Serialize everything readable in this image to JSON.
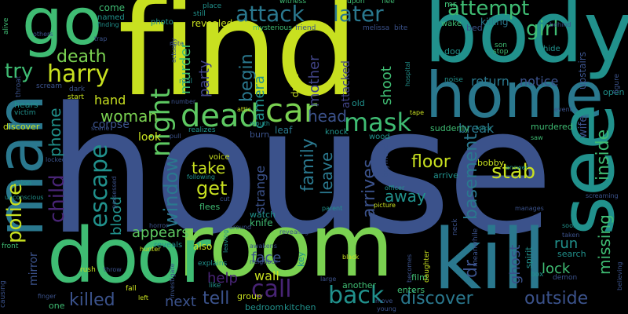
{
  "background": "#000000",
  "palette": {
    "yellow": "#c8e020",
    "lime": "#7ad151",
    "green": "#3fbc73",
    "teal": "#21918c",
    "cyan": "#2a788e",
    "blue": "#3b528b",
    "indigo": "#414487",
    "purple": "#482475",
    "dark": "#440154",
    "mint": "#5ec962"
  },
  "words": {
    "house": "house",
    "find": "find",
    "body": "body",
    "room": "room",
    "home": "home",
    "kill": "kill",
    "man": "man",
    "go": "go",
    "see": "see",
    "door": "door",
    "dead": "dead",
    "car": "car",
    "mask": "mask",
    "harry": "harry",
    "death": "death",
    "try": "try",
    "night": "night",
    "woman": "woman",
    "attack": "attack",
    "later": "later",
    "attempt": "attempt",
    "girl": "girl",
    "murder": "murder",
    "begin": "begin",
    "party": "party",
    "camera": "camera",
    "shoot": "shoot",
    "mother": "mother",
    "attacked": "attacked",
    "head": "head",
    "hand": "hand",
    "phone": "phone",
    "child": "child",
    "police": "police",
    "escape": "escape",
    "window": "window",
    "get": "get",
    "take": "take",
    "strange": "strange",
    "family": "family",
    "leave": "leave",
    "arrives": "arrives",
    "away": "away",
    "basement": "basement",
    "floor": "floor",
    "stab": "stab",
    "missing": "missing",
    "inside": "inside",
    "appears": "appears",
    "blood": "blood",
    "call": "call",
    "back": "back",
    "killed": "killed",
    "next": "next",
    "tell": "tell",
    "discover": "discover",
    "outside": "outside",
    "help": "help",
    "wall": "wall",
    "face": "face",
    "run": "run",
    "lock": "lock",
    "ghost": "ghost",
    "return": "return",
    "notice": "notice",
    "break": "break",
    "corpse": "corpse",
    "look": "look",
    "mirror": "mirror",
    "dr": "dr",
    "kitchen": "kitchen",
    "bedroom": "bedroom",
    "come": "come",
    "named": "named",
    "revealed": "revealed",
    "killing": "killing",
    "bed": "bed",
    "dog": "dog",
    "upstairs": "upstairs",
    "wife": "wife",
    "open": "open",
    "suddenly": "suddenly",
    "murdered": "murdered",
    "bobby": "bobby",
    "search": "search",
    "spirit": "spirit",
    "film": "film",
    "watch": "watch",
    "knife": "knife",
    "drive": "drive",
    "burn": "burn",
    "voice": "voice",
    "flees": "flees",
    "also": "also",
    "reveals": "reveals",
    "enters": "enters",
    "another": "another",
    "one": "one",
    "group": "group",
    "key": "key",
    "arrive": "arrive",
    "wood": "wood",
    "knock": "knock",
    "leaf": "leaf",
    "old": "old",
    "photo": "photo",
    "still": "still",
    "place": "place",
    "mysterious": "mysterious",
    "witness": "witness",
    "upon": "upon",
    "flee": "flee",
    "friend": "friend",
    "melissa": "melissa",
    "bite": "bite",
    "mr": "mr",
    "wake": "wake",
    "son": "son",
    "stop": "stop",
    "hide": "hide",
    "behind": "behind",
    "alive": "alive",
    "others": "others",
    "throat": "throat",
    "scream": "scream",
    "hears": "hears",
    "victim": "victim",
    "vision": "vision",
    "unconscious": "unconscious",
    "front": "front",
    "causing": "causing",
    "finger": "finger",
    "rush": "rush",
    "throw": "throw",
    "fall": "fall",
    "hunter": "hunter",
    "horror": "horror",
    "number": "number",
    "real": "real",
    "dark": "dark",
    "start": "start",
    "scene": "scene",
    "pull": "pull",
    "realizes": "realizes",
    "attic": "attic",
    "mouth": "mouth",
    "tape": "tape",
    "event": "event",
    "force": "force",
    "saw": "saw",
    "answer": "answer",
    "figure": "figure",
    "believing": "believing",
    "screaming": "screaming",
    "soon": "soon",
    "taken": "taken",
    "demon": "demon",
    "box": "box",
    "manages": "manages",
    "picture": "picture",
    "officer": "officer",
    "boyfriend": "boyfriend",
    "parent": "parent",
    "revealing": "revealing",
    "around": "around",
    "awakens": "awakens",
    "neighbor": "neighbor",
    "explains": "explains",
    "investigate": "investigate",
    "like": "like",
    "large": "large",
    "black": "black",
    "becomes": "becomes",
    "daughter": "daughter",
    "meanwhile": "meanwhile",
    "neck": "neck",
    "move": "move",
    "young": "young",
    "hospital": "hospital",
    "noise": "noise",
    "finding": "finding",
    "trap": "trap",
    "cut": "cut",
    "following": "following",
    "possessed": "possessed",
    "locked": "locked",
    "actually": "actually",
    "note": "note",
    "leaving": "leaving",
    "left": "left"
  }
}
